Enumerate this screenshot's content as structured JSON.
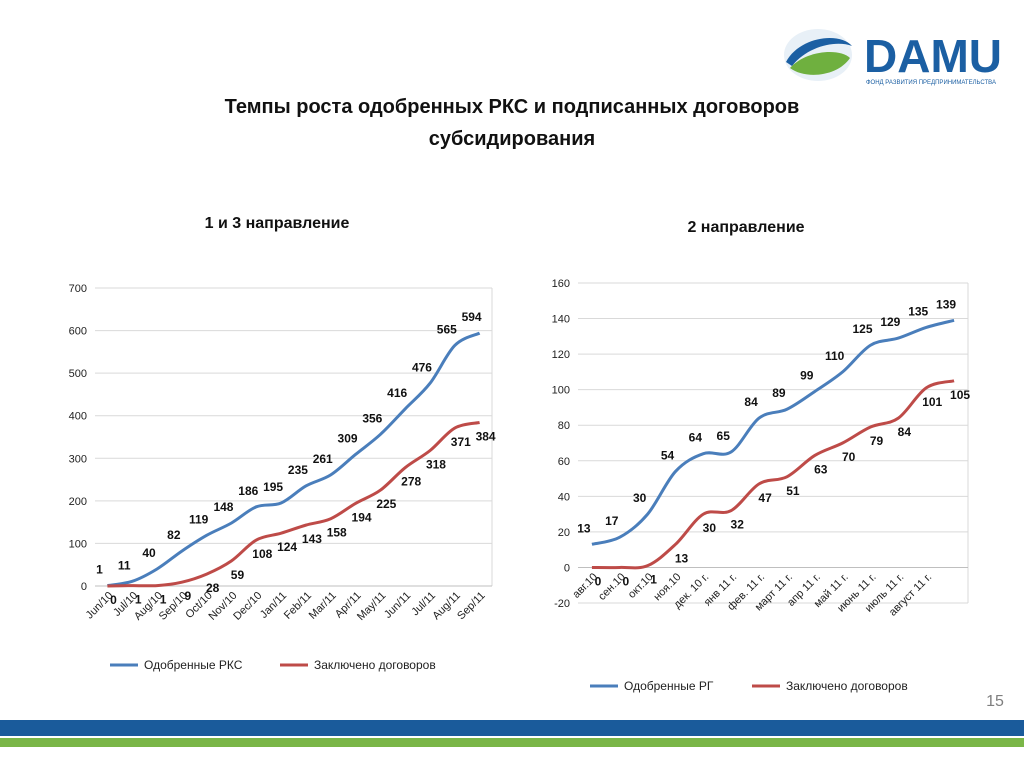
{
  "title": [
    "Темпы роста одобренных РКС и подписанных договоров",
    "субсидирования"
  ],
  "logo": {
    "name": "DAMU",
    "tagline": "ФОНД РАЗВИТИЯ ПРЕДПРИНИМАТЕЛЬСТВА"
  },
  "page_number": 15,
  "chart_data": [
    {
      "type": "line",
      "title": "1 и 3 направление",
      "categories": [
        "Jun/10",
        "Jul/10",
        "Aug/10",
        "Sep/10",
        "Oct/10",
        "Nov/10",
        "Dec/10",
        "Jan/11",
        "Feb/11",
        "Mar/11",
        "Apr/11",
        "May/11",
        "Jun/11",
        "Jul/11",
        "Aug/11",
        "Sep/11"
      ],
      "series": [
        {
          "name": "Одобренные РКС",
          "color": "#4a7ebb",
          "values": [
            1,
            11,
            40,
            82,
            119,
            148,
            186,
            195,
            235,
            261,
            309,
            356,
            416,
            476,
            565,
            594
          ]
        },
        {
          "name": "Заключено договоров",
          "color": "#be4b48",
          "values": [
            0,
            1,
            1,
            9,
            28,
            59,
            108,
            124,
            143,
            158,
            194,
            225,
            278,
            318,
            371,
            384
          ]
        }
      ],
      "ylim": [
        0,
        700
      ],
      "yticks": [
        0,
        100,
        200,
        300,
        400,
        500,
        600,
        700
      ],
      "grid": true,
      "legend": "bottom"
    },
    {
      "type": "line",
      "title": "2 направление",
      "categories": [
        "авг.10",
        "сен.10",
        "окт.10",
        "ноя.10",
        "дек. 10 г.",
        "янв 11 г.",
        "фев. 11 г.",
        "март 11 г.",
        "апр 11 г.",
        "май 11 г.",
        "июнь 11 г.",
        "июль 11 г.",
        "август 11 г.",
        null
      ],
      "series": [
        {
          "name": "Одобренные РГ",
          "color": "#4a7ebb",
          "values": [
            13,
            17,
            30,
            54,
            64,
            65,
            84,
            89,
            99,
            110,
            125,
            129,
            135,
            139
          ]
        },
        {
          "name": "Заключено договоров",
          "color": "#be4b48",
          "values": [
            0,
            0,
            1,
            13,
            30,
            32,
            47,
            51,
            63,
            70,
            79,
            84,
            101,
            105
          ]
        }
      ],
      "ylim": [
        -20,
        160
      ],
      "yticks": [
        -20,
        0,
        20,
        40,
        60,
        80,
        100,
        120,
        140,
        160
      ],
      "grid": true,
      "legend": "bottom"
    }
  ]
}
